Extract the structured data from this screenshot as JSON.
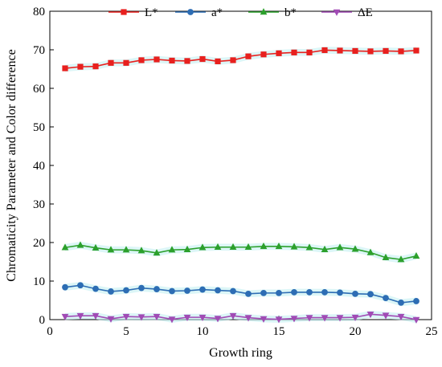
{
  "chart_data": {
    "type": "line",
    "xlabel": "Growth ring",
    "ylabel": "Chromaticity Parameter and Color difference",
    "xlim": [
      0,
      25
    ],
    "ylim": [
      0,
      80
    ],
    "x_ticks": [
      0,
      5,
      10,
      15,
      20,
      25
    ],
    "y_ticks": [
      0,
      10,
      20,
      30,
      40,
      50,
      60,
      70,
      80
    ],
    "x_tick_labels": [
      "0",
      "5",
      "10",
      "15",
      "20",
      "25"
    ],
    "y_tick_labels": [
      "0",
      "10",
      "20",
      "30",
      "40",
      "50",
      "60",
      "70",
      "80"
    ],
    "grid": false,
    "legend_position": "top",
    "x": [
      1,
      2,
      3,
      4,
      5,
      6,
      7,
      8,
      9,
      10,
      11,
      12,
      13,
      14,
      15,
      16,
      17,
      18,
      19,
      20,
      21,
      22,
      23,
      24
    ],
    "series": [
      {
        "name": "L*",
        "color": "#e8201e",
        "marker": "square",
        "values": [
          65.2,
          65.6,
          65.7,
          66.6,
          66.6,
          67.3,
          67.5,
          67.2,
          67.1,
          67.6,
          67.0,
          67.3,
          68.3,
          68.8,
          69.1,
          69.3,
          69.3,
          69.9,
          69.8,
          69.7,
          69.6,
          69.7,
          69.6,
          69.8
        ]
      },
      {
        "name": "a*",
        "color": "#2d6db4",
        "marker": "circle",
        "values": [
          8.4,
          8.9,
          8.0,
          7.3,
          7.6,
          8.2,
          7.9,
          7.4,
          7.5,
          7.8,
          7.6,
          7.4,
          6.7,
          6.9,
          6.9,
          7.1,
          7.1,
          7.1,
          7.0,
          6.7,
          6.6,
          5.6,
          4.4,
          4.8
        ]
      },
      {
        "name": "b*",
        "color": "#2ca02c",
        "marker": "triangle-up",
        "values": [
          18.7,
          19.3,
          18.6,
          18.1,
          18.1,
          17.9,
          17.3,
          18.1,
          18.2,
          18.7,
          18.8,
          18.8,
          18.8,
          19.0,
          19.0,
          18.9,
          18.7,
          18.2,
          18.7,
          18.3,
          17.4,
          16.1,
          15.6,
          16.5
        ]
      },
      {
        "name": "ΔE",
        "color": "#a14bb5",
        "marker": "triangle-down",
        "values": [
          0.8,
          1.0,
          1.0,
          0.2,
          0.8,
          0.7,
          0.8,
          0.1,
          0.6,
          0.6,
          0.3,
          1.0,
          0.5,
          0.2,
          0.1,
          0.3,
          0.5,
          0.5,
          0.5,
          0.6,
          1.4,
          1.1,
          0.8,
          0.0
        ]
      }
    ]
  }
}
